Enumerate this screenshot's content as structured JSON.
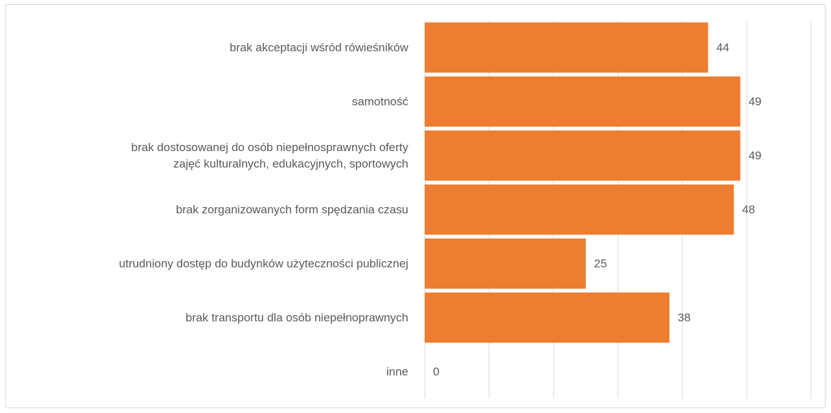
{
  "chart_data": {
    "type": "bar",
    "orientation": "horizontal",
    "categories": [
      "brak akceptacji wśród rówieśników",
      "samotność",
      "brak dostosowanej do osób niepełnosprawnych oferty\nzajęć kulturalnych, edukacyjnych, sportowych",
      "brak zorganizowanych form spędzania czasu",
      "utrudniony dostęp do budynków użyteczności publicznej",
      "brak transportu dla osób niepełnoprawnych",
      "inne"
    ],
    "values": [
      44,
      49,
      49,
      48,
      25,
      38,
      0
    ],
    "color": "#ed7d31",
    "xlim": [
      0,
      60
    ],
    "xticks": [
      0,
      10,
      20,
      30,
      40,
      50,
      60
    ],
    "grid": true
  }
}
